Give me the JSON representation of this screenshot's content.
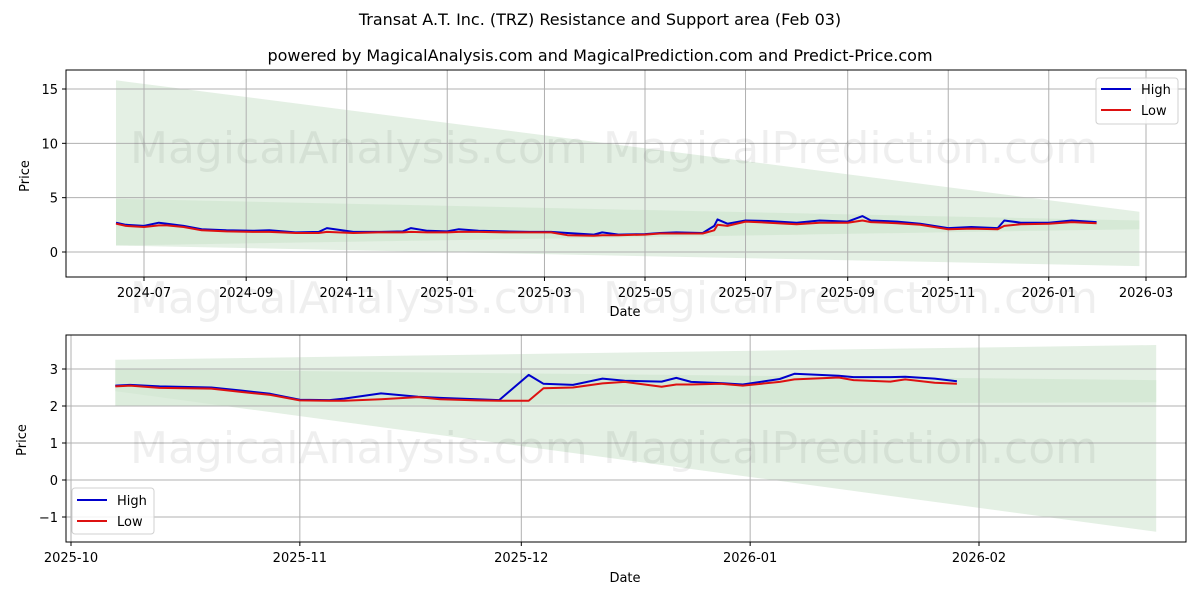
{
  "header": {
    "title": "Transat A.T. Inc. (TRZ) Resistance and Support area (Feb 03)",
    "subtitle": "powered by MagicalAnalysis.com and MagicalPrediction.com and Predict-Price.com"
  },
  "watermarks": [
    "MagicalAnalysis.com",
    "MagicalPrediction.com"
  ],
  "colors": {
    "high": "#0000cc",
    "low": "#dd1111",
    "band_light": "#e3efe3",
    "band_mid": "#d2e7d2",
    "band_dark": "#c3dfc3",
    "grid": "#b0b0b0"
  },
  "chart_data": [
    {
      "type": "line",
      "title": "Full history",
      "xlabel": "Date",
      "ylabel": "Price",
      "ylim": [
        -2.3,
        16.7
      ],
      "yticks": [
        0,
        5,
        10,
        15
      ],
      "xticks": [
        "2024-07",
        "2024-09",
        "2024-11",
        "2025-01",
        "2025-03",
        "2025-05",
        "2025-07",
        "2025-09",
        "2025-11",
        "2026-01",
        "2026-03"
      ],
      "grid": true,
      "legend": {
        "position": "upper right",
        "entries": [
          "High",
          "Low"
        ]
      },
      "x": [
        "2024-06-14",
        "2024-06-20",
        "2024-07-01",
        "2024-07-10",
        "2024-07-15",
        "2024-07-25",
        "2024-08-05",
        "2024-08-20",
        "2024-09-05",
        "2024-09-15",
        "2024-10-01",
        "2024-10-15",
        "2024-10-20",
        "2024-11-05",
        "2024-11-20",
        "2024-12-05",
        "2024-12-10",
        "2024-12-20",
        "2025-01-01",
        "2025-01-08",
        "2025-01-20",
        "2025-02-05",
        "2025-02-20",
        "2025-03-05",
        "2025-03-15",
        "2025-03-31",
        "2025-04-05",
        "2025-04-15",
        "2025-05-01",
        "2025-05-10",
        "2025-05-20",
        "2025-06-05",
        "2025-06-12",
        "2025-06-14",
        "2025-06-20",
        "2025-07-01",
        "2025-07-15",
        "2025-08-01",
        "2025-08-15",
        "2025-09-01",
        "2025-09-10",
        "2025-09-15",
        "2025-10-01",
        "2025-10-15",
        "2025-11-01",
        "2025-11-15",
        "2025-12-01",
        "2025-12-05",
        "2025-12-15",
        "2026-01-01",
        "2026-01-15",
        "2026-01-30"
      ],
      "series": [
        {
          "name": "High",
          "values": [
            2.7,
            2.5,
            2.4,
            2.7,
            2.6,
            2.4,
            2.1,
            2.0,
            1.95,
            2.0,
            1.8,
            1.85,
            2.2,
            1.85,
            1.85,
            1.9,
            2.2,
            1.95,
            1.9,
            2.1,
            1.95,
            1.9,
            1.85,
            1.85,
            1.75,
            1.6,
            1.8,
            1.6,
            1.65,
            1.75,
            1.8,
            1.75,
            2.4,
            3.0,
            2.6,
            2.9,
            2.85,
            2.7,
            2.9,
            2.8,
            3.3,
            2.9,
            2.8,
            2.6,
            2.2,
            2.3,
            2.2,
            2.9,
            2.7,
            2.7,
            2.9,
            2.75
          ]
        },
        {
          "name": "Low",
          "values": [
            2.6,
            2.4,
            2.3,
            2.45,
            2.45,
            2.3,
            2.0,
            1.9,
            1.85,
            1.85,
            1.75,
            1.75,
            1.85,
            1.75,
            1.8,
            1.8,
            1.85,
            1.8,
            1.8,
            1.85,
            1.85,
            1.8,
            1.8,
            1.8,
            1.55,
            1.5,
            1.55,
            1.55,
            1.6,
            1.7,
            1.7,
            1.7,
            2.0,
            2.5,
            2.4,
            2.8,
            2.7,
            2.55,
            2.7,
            2.7,
            2.9,
            2.75,
            2.65,
            2.5,
            2.1,
            2.15,
            2.1,
            2.4,
            2.55,
            2.6,
            2.75,
            2.65
          ]
        }
      ],
      "bands": [
        {
          "name": "outer",
          "start": "2024-06-14",
          "end": "2026-02-25",
          "top_start": 15.8,
          "top_end": 3.7,
          "bottom_start": 0.6,
          "bottom_end": -1.3
        },
        {
          "name": "inner",
          "start": "2024-06-14",
          "end": "2026-02-25",
          "top_start": 4.9,
          "top_end": 2.9,
          "bottom_start": 0.6,
          "bottom_end": 2.1
        }
      ]
    },
    {
      "type": "line",
      "title": "Recent zoom",
      "xlabel": "Date",
      "ylabel": "Price",
      "ylim": [
        -1.68,
        3.92
      ],
      "yticks": [
        -1,
        0,
        1,
        2,
        3
      ],
      "xticks": [
        "2025-10",
        "2025-11",
        "2025-12",
        "2026-01",
        "2026-02"
      ],
      "grid": true,
      "legend": {
        "position": "lower left",
        "entries": [
          "High",
          "Low"
        ]
      },
      "x": [
        "2025-10-07",
        "2025-10-09",
        "2025-10-13",
        "2025-10-20",
        "2025-10-24",
        "2025-10-28",
        "2025-11-01",
        "2025-11-05",
        "2025-11-07",
        "2025-11-12",
        "2025-11-17",
        "2025-11-20",
        "2025-11-25",
        "2025-11-28",
        "2025-12-02",
        "2025-12-04",
        "2025-12-08",
        "2025-12-12",
        "2025-12-15",
        "2025-12-20",
        "2025-12-22",
        "2025-12-24",
        "2025-12-28",
        "2025-12-31",
        "2026-01-05",
        "2026-01-07",
        "2026-01-13",
        "2026-01-15",
        "2026-01-20",
        "2026-01-22",
        "2026-01-26",
        "2026-01-29"
      ],
      "series": [
        {
          "name": "High",
          "values": [
            2.55,
            2.57,
            2.53,
            2.5,
            2.42,
            2.33,
            2.17,
            2.16,
            2.2,
            2.34,
            2.25,
            2.22,
            2.18,
            2.16,
            2.84,
            2.6,
            2.57,
            2.74,
            2.68,
            2.66,
            2.76,
            2.65,
            2.62,
            2.58,
            2.73,
            2.87,
            2.82,
            2.78,
            2.78,
            2.79,
            2.74,
            2.67
          ]
        },
        {
          "name": "Low",
          "values": [
            2.53,
            2.55,
            2.49,
            2.47,
            2.38,
            2.3,
            2.15,
            2.14,
            2.14,
            2.18,
            2.24,
            2.18,
            2.15,
            2.14,
            2.14,
            2.48,
            2.5,
            2.61,
            2.65,
            2.52,
            2.58,
            2.58,
            2.6,
            2.55,
            2.65,
            2.72,
            2.77,
            2.7,
            2.66,
            2.72,
            2.63,
            2.6
          ]
        }
      ],
      "bands": [
        {
          "name": "outer",
          "start": "2025-10-07",
          "end": "2026-02-25",
          "top_start": 3.25,
          "top_end": 3.65,
          "bottom_start": 2.4,
          "bottom_end": -1.4
        },
        {
          "name": "inner",
          "start": "2025-10-07",
          "end": "2026-02-25",
          "top_start": 3.0,
          "top_end": 2.7,
          "bottom_start": 2.0,
          "bottom_end": 2.1
        }
      ]
    }
  ]
}
